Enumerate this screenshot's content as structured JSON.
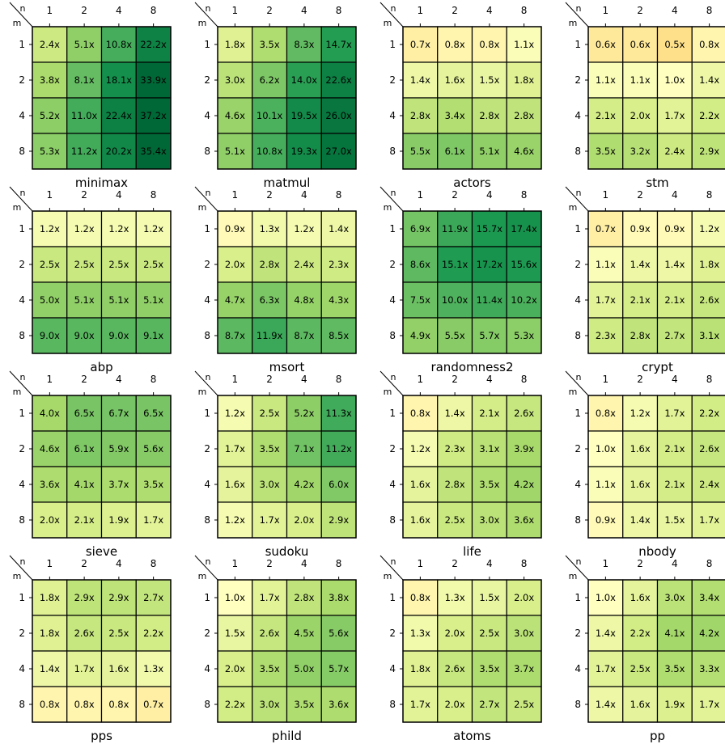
{
  "chart_data": {
    "type": "heatmap",
    "x_axis_label": "n",
    "y_axis_label": "m",
    "x_ticks": [
      "1",
      "2",
      "4",
      "8"
    ],
    "y_ticks": [
      "1",
      "2",
      "4",
      "8"
    ],
    "value_suffix": "x",
    "colormap": "RdYlGn (log-scaled around 1.0x)",
    "grid": false,
    "panels": [
      {
        "title": "minimax",
        "values": [
          [
            2.4,
            5.1,
            10.8,
            22.2
          ],
          [
            3.8,
            8.1,
            18.1,
            33.9
          ],
          [
            5.2,
            11.0,
            22.4,
            37.2
          ],
          [
            5.3,
            11.2,
            20.2,
            35.4
          ]
        ]
      },
      {
        "title": "matmul",
        "values": [
          [
            1.8,
            3.5,
            8.3,
            14.7
          ],
          [
            3.0,
            6.2,
            14.0,
            22.6
          ],
          [
            4.6,
            10.1,
            19.5,
            26.0
          ],
          [
            5.1,
            10.8,
            19.3,
            27.0
          ]
        ]
      },
      {
        "title": "actors",
        "values": [
          [
            0.7,
            0.8,
            0.8,
            1.1
          ],
          [
            1.4,
            1.6,
            1.5,
            1.8
          ],
          [
            2.8,
            3.4,
            2.8,
            2.8
          ],
          [
            5.5,
            6.1,
            5.1,
            4.6
          ]
        ]
      },
      {
        "title": "stm",
        "values": [
          [
            0.6,
            0.6,
            0.5,
            0.8
          ],
          [
            1.1,
            1.1,
            1.0,
            1.4
          ],
          [
            2.1,
            2.0,
            1.7,
            2.2
          ],
          [
            3.5,
            3.2,
            2.4,
            2.9
          ]
        ]
      },
      {
        "title": "abp",
        "values": [
          [
            1.2,
            1.2,
            1.2,
            1.2
          ],
          [
            2.5,
            2.5,
            2.5,
            2.5
          ],
          [
            5.0,
            5.1,
            5.1,
            5.1
          ],
          [
            9.0,
            9.0,
            9.0,
            9.1
          ]
        ]
      },
      {
        "title": "msort",
        "values": [
          [
            0.9,
            1.3,
            1.2,
            1.4
          ],
          [
            2.0,
            2.8,
            2.4,
            2.3
          ],
          [
            4.7,
            6.3,
            4.8,
            4.3
          ],
          [
            8.7,
            11.9,
            8.7,
            8.5
          ]
        ]
      },
      {
        "title": "randomness2",
        "values": [
          [
            6.9,
            11.9,
            15.7,
            17.4
          ],
          [
            8.6,
            15.1,
            17.2,
            15.6
          ],
          [
            7.5,
            10.0,
            11.4,
            10.2
          ],
          [
            4.9,
            5.5,
            5.7,
            5.3
          ]
        ]
      },
      {
        "title": "crypt",
        "values": [
          [
            0.7,
            0.9,
            0.9,
            1.2
          ],
          [
            1.1,
            1.4,
            1.4,
            1.8
          ],
          [
            1.7,
            2.1,
            2.1,
            2.6
          ],
          [
            2.3,
            2.8,
            2.7,
            3.1
          ]
        ]
      },
      {
        "title": "sieve",
        "values": [
          [
            4.0,
            6.5,
            6.7,
            6.5
          ],
          [
            4.6,
            6.1,
            5.9,
            5.6
          ],
          [
            3.6,
            4.1,
            3.7,
            3.5
          ],
          [
            2.0,
            2.1,
            1.9,
            1.7
          ]
        ]
      },
      {
        "title": "sudoku",
        "values": [
          [
            1.2,
            2.5,
            5.2,
            11.3
          ],
          [
            1.7,
            3.5,
            7.1,
            11.2
          ],
          [
            1.6,
            3.0,
            4.2,
            6.0
          ],
          [
            1.2,
            1.7,
            2.0,
            2.9
          ]
        ]
      },
      {
        "title": "life",
        "values": [
          [
            0.8,
            1.4,
            2.1,
            2.6
          ],
          [
            1.2,
            2.3,
            3.1,
            3.9
          ],
          [
            1.6,
            2.8,
            3.5,
            4.2
          ],
          [
            1.6,
            2.5,
            3.0,
            3.6
          ]
        ]
      },
      {
        "title": "nbody",
        "values": [
          [
            0.8,
            1.2,
            1.7,
            2.2
          ],
          [
            1.0,
            1.6,
            2.1,
            2.6
          ],
          [
            1.1,
            1.6,
            2.1,
            2.4
          ],
          [
            0.9,
            1.4,
            1.5,
            1.7
          ]
        ]
      },
      {
        "title": "pps",
        "values": [
          [
            1.8,
            2.9,
            2.9,
            2.7
          ],
          [
            1.8,
            2.6,
            2.5,
            2.2
          ],
          [
            1.4,
            1.7,
            1.6,
            1.3
          ],
          [
            0.8,
            0.8,
            0.8,
            0.7
          ]
        ]
      },
      {
        "title": "phild",
        "values": [
          [
            1.0,
            1.7,
            2.8,
            3.8
          ],
          [
            1.5,
            2.6,
            4.5,
            5.6
          ],
          [
            2.0,
            3.5,
            5.0,
            5.7
          ],
          [
            2.2,
            3.0,
            3.5,
            3.6
          ]
        ]
      },
      {
        "title": "atoms",
        "values": [
          [
            0.8,
            1.3,
            1.5,
            2.0
          ],
          [
            1.3,
            2.0,
            2.5,
            3.0
          ],
          [
            1.8,
            2.6,
            3.5,
            3.7
          ],
          [
            1.7,
            2.0,
            2.7,
            2.5
          ]
        ]
      },
      {
        "title": "pp",
        "values": [
          [
            1.0,
            1.6,
            3.0,
            3.4
          ],
          [
            1.4,
            2.2,
            4.1,
            4.2
          ],
          [
            1.7,
            2.5,
            3.5,
            3.3
          ],
          [
            1.4,
            1.6,
            1.9,
            1.7
          ]
        ]
      }
    ]
  }
}
